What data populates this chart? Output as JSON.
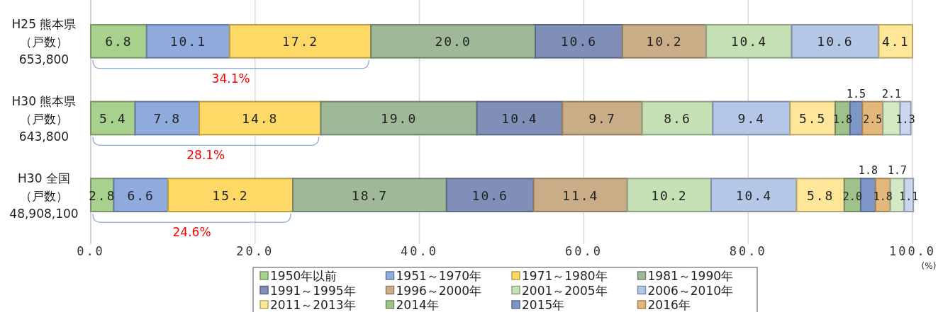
{
  "chart_data": {
    "type": "bar",
    "orientation": "horizontal",
    "stacked": true,
    "grid": "x",
    "legend": "bottom",
    "xlabel": "(%)",
    "categories": [
      "H25 熊本県（戸数）653,800",
      "H30 熊本県（戸数）643,800",
      "H30 全国（戸数）48,908,100"
    ],
    "xlim": [
      0,
      100
    ],
    "xticks": [
      {
        "value": 0,
        "label": "0.0"
      },
      {
        "value": 20,
        "label": "20.0"
      },
      {
        "value": 40,
        "label": "40.0"
      },
      {
        "value": 60,
        "label": "60.0"
      },
      {
        "value": 80,
        "label": "80.0"
      },
      {
        "value": 100,
        "label": "100.0"
      }
    ],
    "series": [
      {
        "name": "1950年以前",
        "color": "#a9d18e",
        "values": [
          6.8,
          5.4,
          2.8
        ],
        "value_labels": [
          "6.8",
          "5.4",
          "2.8"
        ]
      },
      {
        "name": "1951～1970年",
        "color": "#8faadc",
        "values": [
          10.1,
          7.8,
          6.6
        ],
        "value_labels": [
          "10.1",
          "7.8",
          "6.6"
        ]
      },
      {
        "name": "1971～1980年",
        "color": "#ffd966",
        "values": [
          17.2,
          14.8,
          15.2
        ],
        "value_labels": [
          "17.2",
          "14.8",
          "15.2"
        ]
      },
      {
        "name": "1981～1990年",
        "color": "#9fb897",
        "values": [
          20.0,
          19.0,
          18.7
        ],
        "value_labels": [
          "20.0",
          "19.0",
          "18.7"
        ]
      },
      {
        "name": "1991～1995年",
        "color": "#7f8fb8",
        "values": [
          10.6,
          10.4,
          10.6
        ],
        "value_labels": [
          "10.6",
          "10.4",
          "10.6"
        ]
      },
      {
        "name": "1996～2000年",
        "color": "#c9ad86",
        "values": [
          10.2,
          9.7,
          11.4
        ],
        "value_labels": [
          "10.2",
          "9.7",
          "11.4"
        ]
      },
      {
        "name": "2001～2005年",
        "color": "#c5e0b4",
        "values": [
          10.4,
          8.6,
          10.2
        ],
        "value_labels": [
          "10.4",
          "8.6",
          "10.2"
        ]
      },
      {
        "name": "2006～2010年",
        "color": "#b4c7e7",
        "values": [
          10.6,
          9.4,
          10.4
        ],
        "value_labels": [
          "10.6",
          "9.4",
          "10.4"
        ]
      },
      {
        "name": "2011～2013年",
        "color": "#ffe699",
        "values": [
          4.1,
          5.5,
          5.8
        ],
        "value_labels": [
          "4.1",
          "5.5",
          "5.8"
        ]
      },
      {
        "name": "2014年",
        "color": "#9fc28a",
        "values": [
          null,
          1.8,
          2.0
        ],
        "value_labels": [
          null,
          "1.8",
          "2.0"
        ]
      },
      {
        "name": "2015年",
        "color": "#7f96c8",
        "values": [
          null,
          1.5,
          1.8
        ],
        "value_labels": [
          null,
          "1.5",
          "1.8"
        ]
      },
      {
        "name": "2016年",
        "color": "#e4b87a",
        "values": [
          null,
          2.5,
          1.8
        ],
        "value_labels": [
          null,
          "2.5",
          "1.8"
        ]
      },
      {
        "color": "#d5e8c4",
        "values": [
          null,
          2.1,
          1.7
        ],
        "value_labels": [
          null,
          "2.1",
          "1.7"
        ]
      },
      {
        "color": "#c9d6ee",
        "values": [
          null,
          1.3,
          1.1
        ],
        "value_labels": [
          null,
          "1.3",
          "1.1"
        ]
      }
    ],
    "annotations": [
      "34.1%",
      "28.1%",
      "24.6%"
    ]
  }
}
